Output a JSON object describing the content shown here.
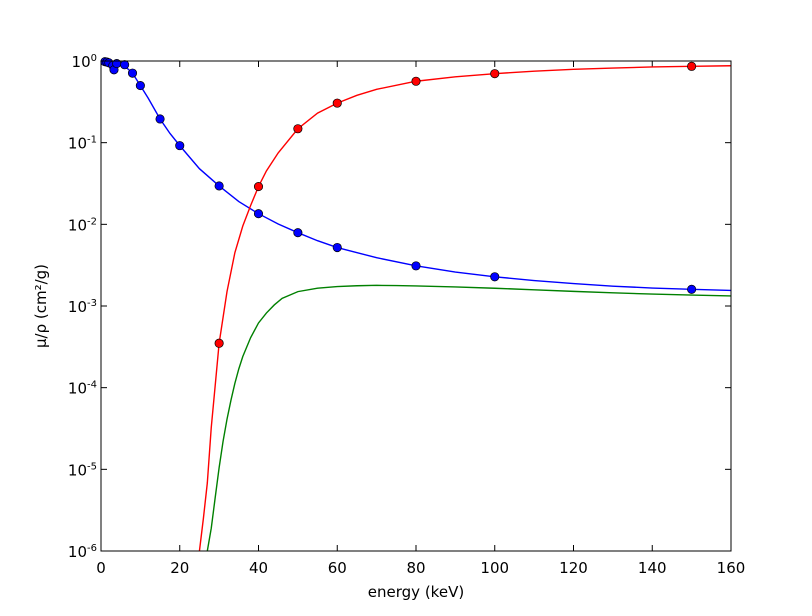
{
  "chart_data": {
    "type": "line",
    "title": "",
    "xlabel": "energy (keV)",
    "ylabel": "μ/ρ (cm²/g)",
    "xlim": [
      0,
      160
    ],
    "ylim": [
      1e-06,
      1
    ],
    "yscale": "log",
    "x_ticks": [
      "0",
      "20",
      "40",
      "60",
      "80",
      "100",
      "120",
      "140",
      "160"
    ],
    "y_ticks": [
      {
        "base": "10",
        "exp": "0",
        "value": 1
      },
      {
        "base": "10",
        "exp": "-1",
        "value": 0.1
      },
      {
        "base": "10",
        "exp": "-2",
        "value": 0.01
      },
      {
        "base": "10",
        "exp": "-3",
        "value": 0.001
      },
      {
        "base": "10",
        "exp": "-4",
        "value": 0.0001
      },
      {
        "base": "10",
        "exp": "-5",
        "value": 1e-05
      },
      {
        "base": "10",
        "exp": "-6",
        "value": 1e-06
      }
    ],
    "grid": false,
    "legend": "none",
    "series": [
      {
        "color": "#0000ff",
        "style": "line+markers",
        "markers": [
          {
            "x": 1,
            "y": 0.98
          },
          {
            "x": 1.5,
            "y": 0.97
          },
          {
            "x": 2,
            "y": 0.95
          },
          {
            "x": 3,
            "y": 0.88
          },
          {
            "x": 3.3,
            "y": 0.78
          },
          {
            "x": 4,
            "y": 0.93
          },
          {
            "x": 6,
            "y": 0.9
          },
          {
            "x": 8,
            "y": 0.71
          },
          {
            "x": 10,
            "y": 0.5
          },
          {
            "x": 15,
            "y": 0.195
          },
          {
            "x": 20,
            "y": 0.092
          },
          {
            "x": 30,
            "y": 0.0295
          },
          {
            "x": 40,
            "y": 0.0135
          },
          {
            "x": 50,
            "y": 0.0079
          },
          {
            "x": 60,
            "y": 0.0052
          },
          {
            "x": 80,
            "y": 0.0031
          },
          {
            "x": 100,
            "y": 0.00228
          },
          {
            "x": 150,
            "y": 0.0016
          }
        ],
        "line": [
          [
            0.5,
            0.99
          ],
          [
            1,
            0.98
          ],
          [
            2,
            0.96
          ],
          [
            3,
            0.93
          ],
          [
            4,
            0.92
          ],
          [
            5,
            0.9
          ],
          [
            6,
            0.87
          ],
          [
            8,
            0.71
          ],
          [
            10,
            0.5
          ],
          [
            12,
            0.35
          ],
          [
            15,
            0.195
          ],
          [
            17.5,
            0.13
          ],
          [
            20,
            0.092
          ],
          [
            25,
            0.048
          ],
          [
            30,
            0.0295
          ],
          [
            35,
            0.019
          ],
          [
            40,
            0.0135
          ],
          [
            45,
            0.0101
          ],
          [
            50,
            0.0079
          ],
          [
            55,
            0.0063
          ],
          [
            60,
            0.0052
          ],
          [
            70,
            0.0039
          ],
          [
            80,
            0.0031
          ],
          [
            90,
            0.0026
          ],
          [
            100,
            0.00228
          ],
          [
            110,
            0.00205
          ],
          [
            120,
            0.00188
          ],
          [
            130,
            0.00175
          ],
          [
            140,
            0.00166
          ],
          [
            150,
            0.0016
          ],
          [
            160,
            0.00155
          ]
        ]
      },
      {
        "color": "#ff0000",
        "style": "line+markers",
        "markers": [
          {
            "x": 30,
            "y": 0.00035
          },
          {
            "x": 40,
            "y": 0.029
          },
          {
            "x": 50,
            "y": 0.148
          },
          {
            "x": 60,
            "y": 0.305
          },
          {
            "x": 80,
            "y": 0.565
          },
          {
            "x": 100,
            "y": 0.7
          },
          {
            "x": 150,
            "y": 0.86
          }
        ],
        "line": [
          [
            25,
            1e-06
          ],
          [
            26,
            2.5e-06
          ],
          [
            27,
            6.8e-06
          ],
          [
            28,
            3.25e-05
          ],
          [
            29,
            0.000106
          ],
          [
            30,
            0.00035
          ],
          [
            32,
            0.0015
          ],
          [
            34,
            0.0045
          ],
          [
            36,
            0.0095
          ],
          [
            38,
            0.017
          ],
          [
            40,
            0.029
          ],
          [
            42,
            0.045
          ],
          [
            45,
            0.075
          ],
          [
            50,
            0.148
          ],
          [
            55,
            0.23
          ],
          [
            60,
            0.305
          ],
          [
            65,
            0.38
          ],
          [
            70,
            0.45
          ],
          [
            80,
            0.565
          ],
          [
            90,
            0.64
          ],
          [
            100,
            0.7
          ],
          [
            110,
            0.75
          ],
          [
            120,
            0.79
          ],
          [
            130,
            0.82
          ],
          [
            140,
            0.845
          ],
          [
            150,
            0.86
          ],
          [
            160,
            0.875
          ]
        ]
      },
      {
        "color": "#008000",
        "style": "line",
        "markers": [],
        "line": [
          [
            27,
            1e-06
          ],
          [
            28,
            1.9e-06
          ],
          [
            29,
            4.5e-06
          ],
          [
            30,
            1.05e-05
          ],
          [
            31,
            2.2e-05
          ],
          [
            32,
            4.1e-05
          ],
          [
            33,
            7e-05
          ],
          [
            34,
            0.000113
          ],
          [
            35,
            0.00017
          ],
          [
            36,
            0.00024
          ],
          [
            38,
            0.00041
          ],
          [
            40,
            0.00062
          ],
          [
            42,
            0.00082
          ],
          [
            44,
            0.00103
          ],
          [
            46,
            0.00124
          ],
          [
            50,
            0.0015
          ],
          [
            55,
            0.00165
          ],
          [
            60,
            0.00173
          ],
          [
            65,
            0.00177
          ],
          [
            70,
            0.00179
          ],
          [
            75,
            0.00178
          ],
          [
            80,
            0.00176
          ],
          [
            90,
            0.00171
          ],
          [
            100,
            0.00165
          ],
          [
            110,
            0.00158
          ],
          [
            120,
            0.00151
          ],
          [
            130,
            0.00145
          ],
          [
            140,
            0.0014
          ],
          [
            150,
            0.00136
          ],
          [
            160,
            0.00133
          ]
        ]
      }
    ]
  }
}
